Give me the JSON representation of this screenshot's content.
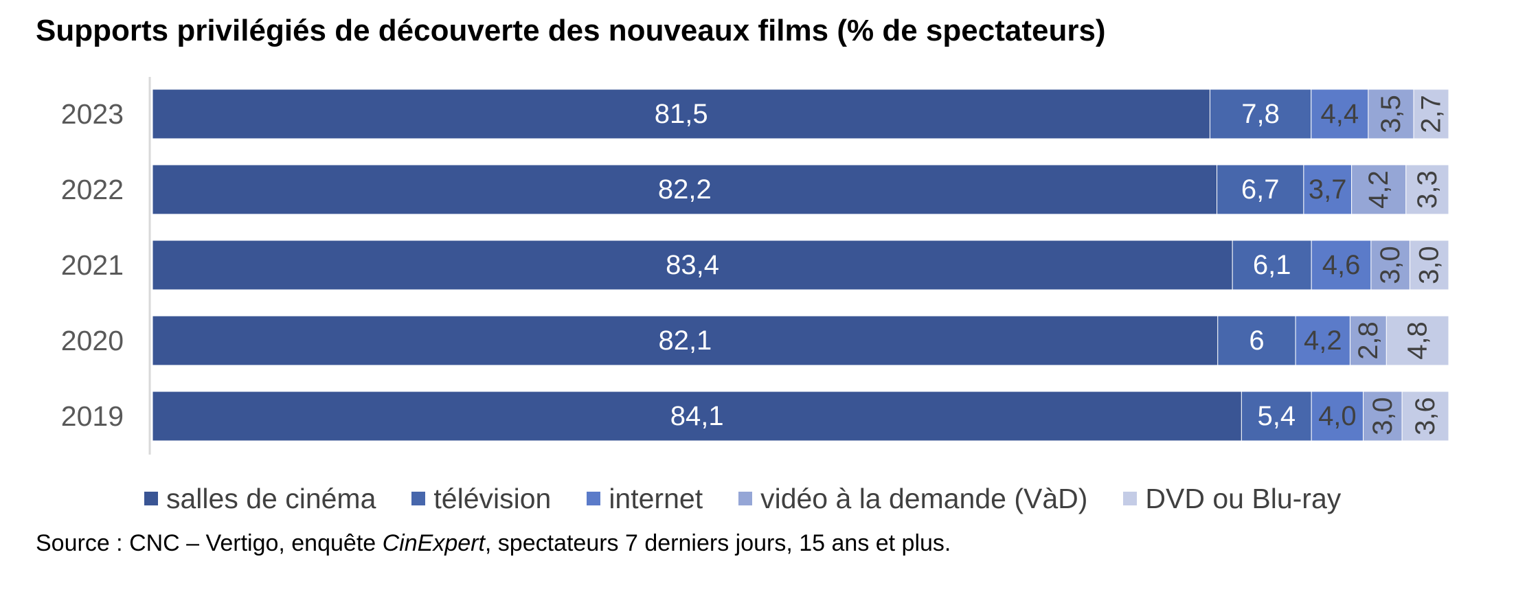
{
  "chart_data": {
    "type": "bar",
    "orientation": "horizontal",
    "stacked": true,
    "title": "Supports privilégiés de découverte des nouveaux films (% de spectateurs)",
    "categories": [
      "2023",
      "2022",
      "2021",
      "2020",
      "2019"
    ],
    "series": [
      {
        "name": "salles de cinéma",
        "color": "#3a5594",
        "values": [
          81.5,
          82.2,
          83.4,
          82.1,
          84.1
        ],
        "labels": [
          "81,5",
          "82,2",
          "83,4",
          "82,1",
          "84,1"
        ]
      },
      {
        "name": "télévision",
        "color": "#4767ac",
        "values": [
          7.8,
          6.7,
          6.1,
          6,
          5.4
        ],
        "labels": [
          "7,8",
          "6,7",
          "6,1",
          "6",
          "5,4"
        ]
      },
      {
        "name": "internet",
        "color": "#5b7bc9",
        "values": [
          4.4,
          3.7,
          4.6,
          4.2,
          4.0
        ],
        "labels": [
          "4,4",
          "3,7",
          "4,6",
          "4,2",
          "4,0"
        ]
      },
      {
        "name": "vidéo à la demande (VàD)",
        "color": "#95a6d6",
        "values": [
          3.5,
          4.2,
          3.0,
          2.8,
          3.0
        ],
        "labels": [
          "3,5",
          "4,2",
          "3,0",
          "2,8",
          "3,0"
        ]
      },
      {
        "name": "DVD ou Blu-ray",
        "color": "#c4cce6",
        "values": [
          2.7,
          3.3,
          3.0,
          4.8,
          3.6
        ],
        "labels": [
          "2,7",
          "3,3",
          "3,0",
          "4,8",
          "3,6"
        ]
      }
    ],
    "label_styles": [
      {
        "color": "#ffffff",
        "rotated": false
      },
      {
        "color": "#ffffff",
        "rotated": false
      },
      {
        "color": "#404040",
        "rotated": false
      },
      {
        "color": "#404040",
        "rotated": true
      },
      {
        "color": "#404040",
        "rotated": true
      }
    ],
    "axis_color": "#d9d9d9",
    "tick_label_color": "#595959",
    "grid": false,
    "legend_position": "bottom"
  },
  "source": {
    "prefix": "Source : CNC – Vertigo, enquête ",
    "italic": "CinExpert",
    "suffix": ", spectateurs 7 derniers jours, 15 ans et plus."
  }
}
